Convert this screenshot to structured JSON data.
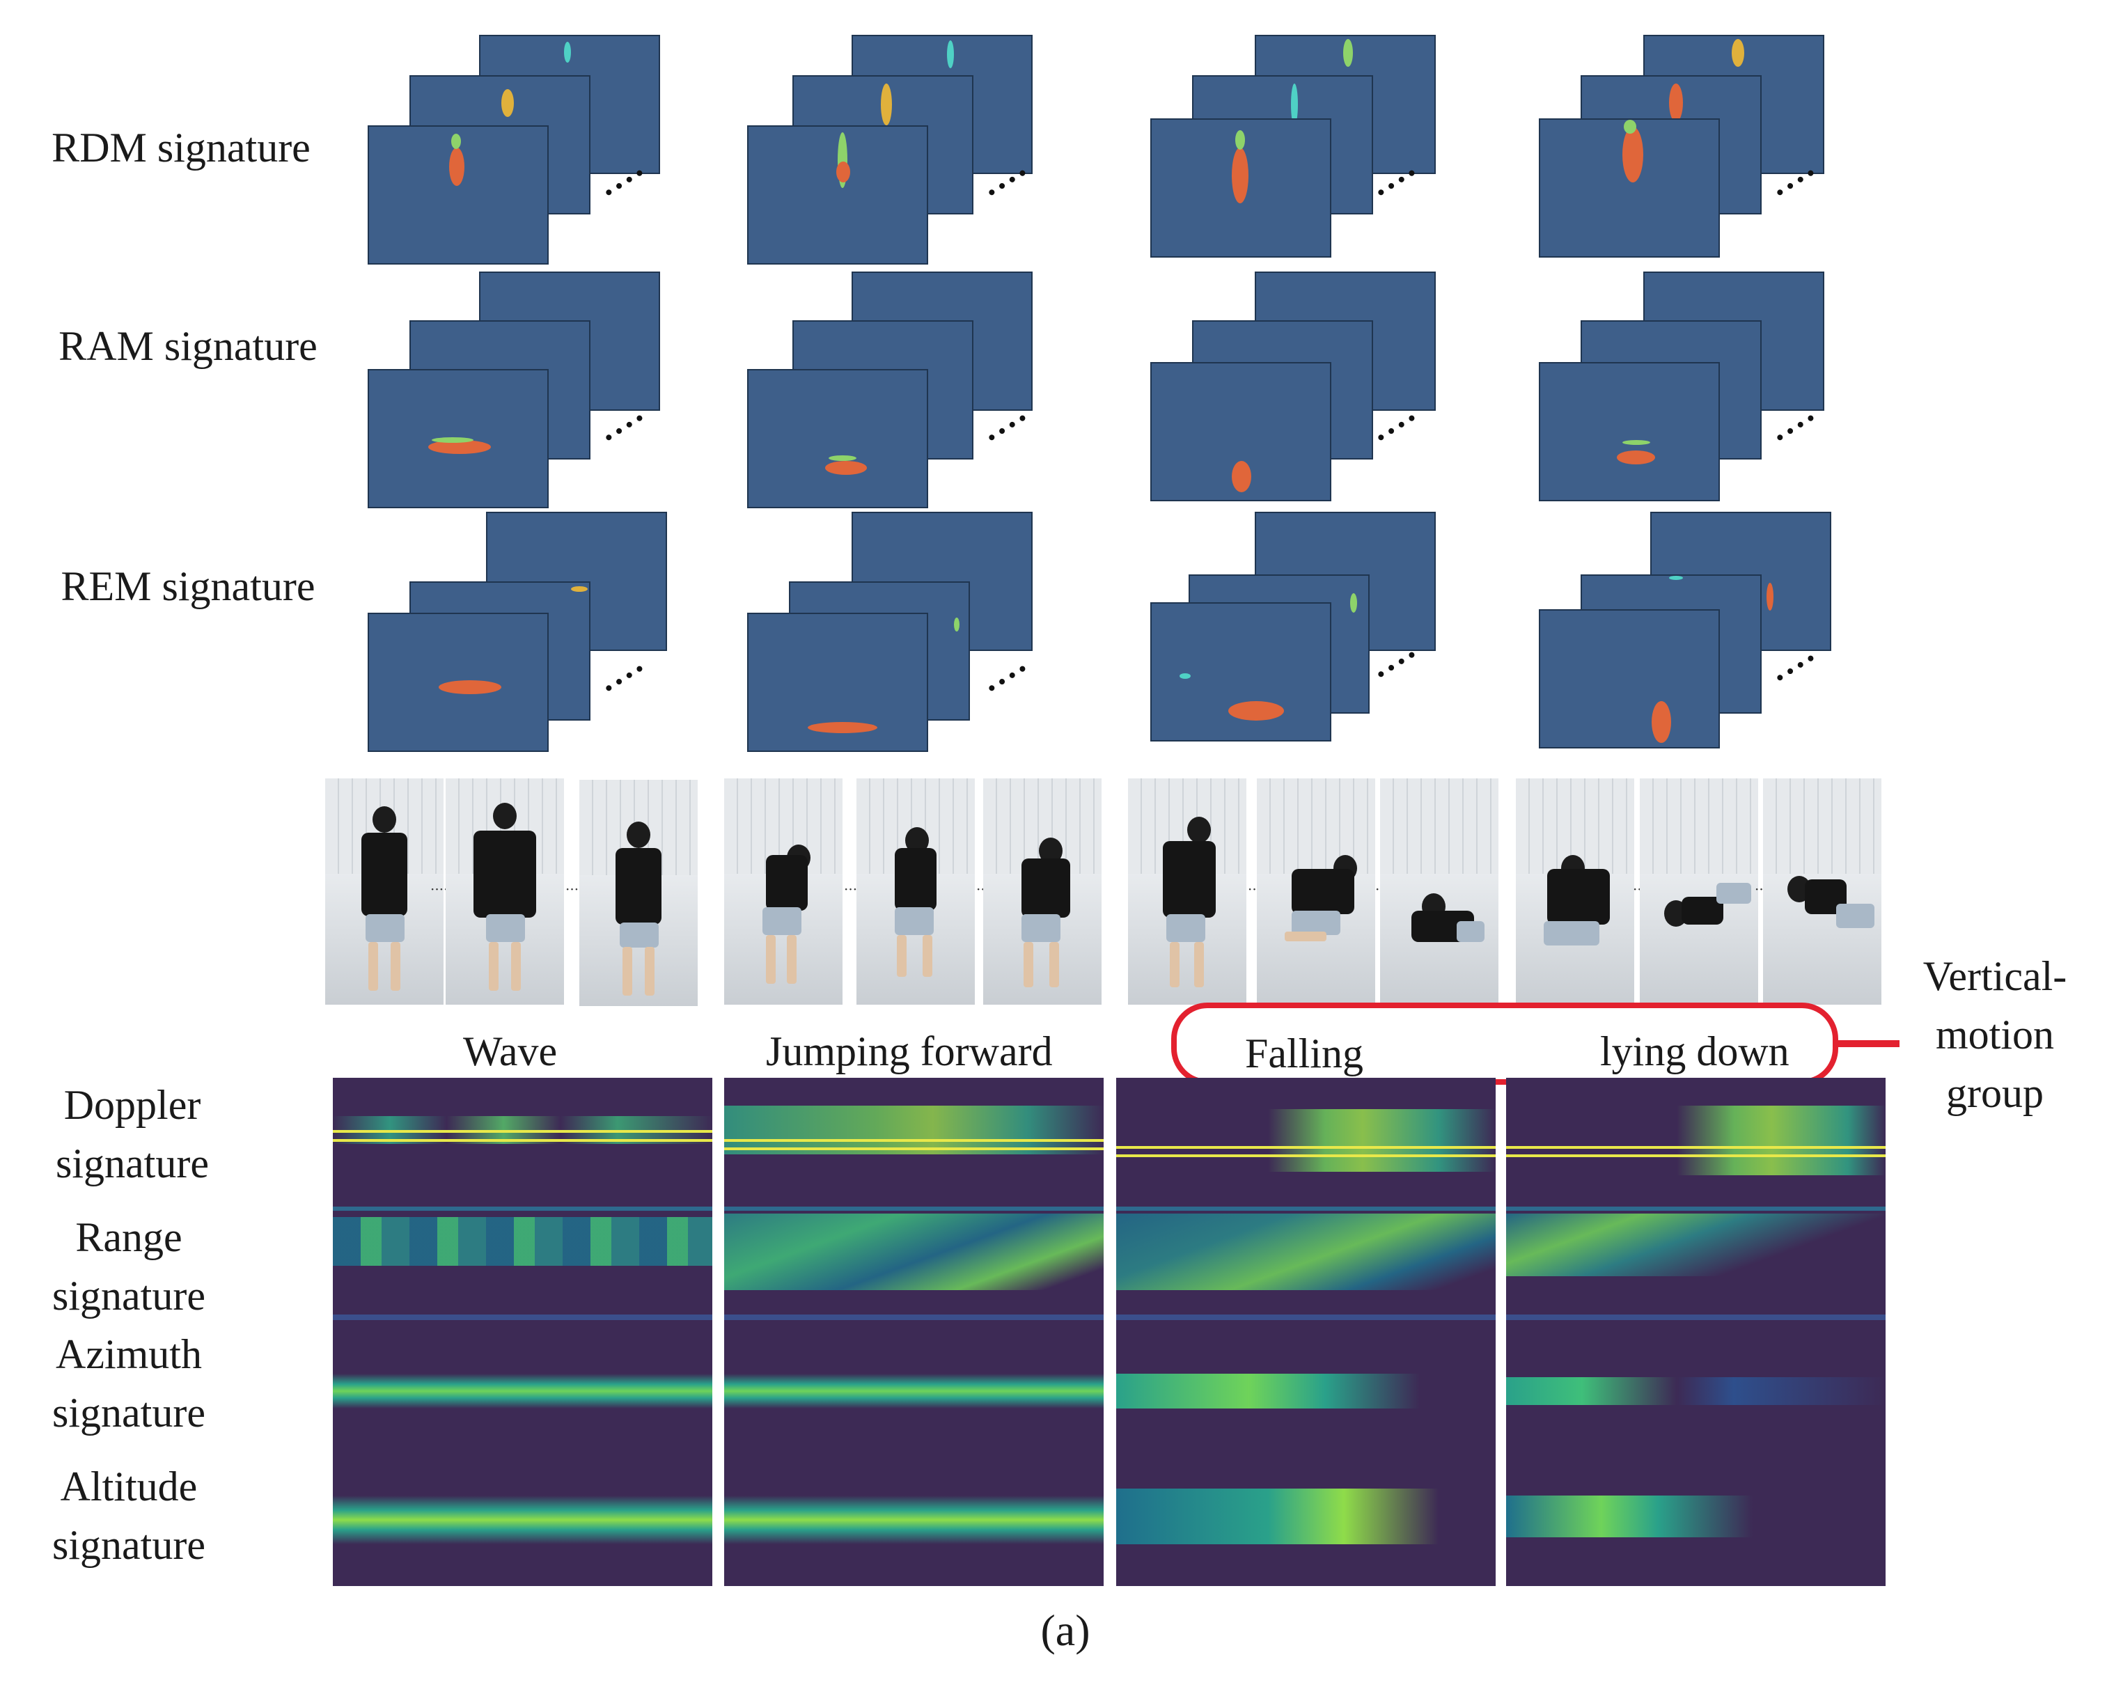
{
  "row_labels": {
    "rdm": "RDM signature",
    "ram": "RAM signature",
    "rem": "REM signature"
  },
  "signal_labels": {
    "doppler": [
      "Doppler",
      "signature"
    ],
    "range": [
      "Range",
      "signature"
    ],
    "azimuth": [
      "Azimuth",
      "signature"
    ],
    "altitude": [
      "Altitude",
      "signature"
    ]
  },
  "activities": [
    "Wave",
    "Jumping forward",
    "Falling",
    "lying down"
  ],
  "group_label": [
    "Vertical-",
    "motion",
    "group"
  ],
  "caption": "(a)",
  "colors": {
    "frame_bg": "#3e5f8a",
    "spectrogram_bg": "#3d2a55",
    "group_outline": "#e3212f",
    "doppler_line": "#e8e84a"
  }
}
